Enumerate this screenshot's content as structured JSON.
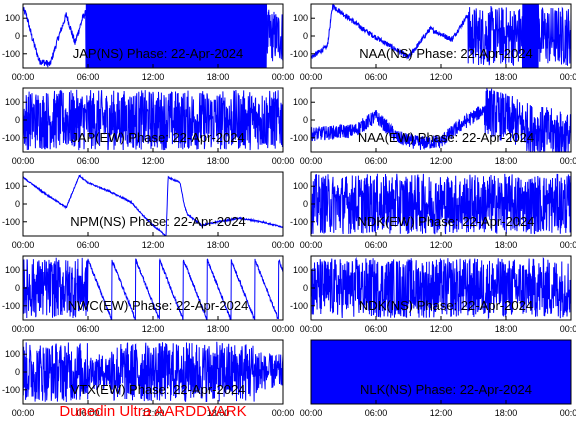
{
  "footer": "Dunedin Ultra AARDDVARK",
  "colors": {
    "trace": "#0000ff",
    "axis": "#000000",
    "footer": "#ff0000",
    "background": "#ffffff"
  },
  "chart_data": [
    {
      "type": "line",
      "title": "JAP(NS) Phase: 22-Apr-2024",
      "xlabel": "",
      "ylabel": "",
      "x_ticks": [
        "00:00",
        "06:00",
        "12:00",
        "18:00",
        "00:00"
      ],
      "y_ticks": [
        -100,
        0,
        100
      ],
      "ylim": [
        -180,
        180
      ],
      "grid": false,
      "series": [
        {
          "pattern": "dense-after",
          "anchors": [
            [
              0,
              150
            ],
            [
              0.3,
              120
            ],
            [
              0.8,
              0
            ],
            [
              1.5,
              -140
            ],
            [
              2.5,
              -160
            ],
            [
              3.2,
              -20
            ],
            [
              4.0,
              120
            ],
            [
              4.8,
              -40
            ],
            [
              5.5,
              100
            ],
            [
              6.0,
              150
            ]
          ],
          "dense_from": 5.8
        }
      ]
    },
    {
      "type": "line",
      "title": "NAA(NS) Phase: 22-Apr-2024",
      "xlabel": "",
      "ylabel": "",
      "x_ticks": [
        "00:00",
        "06:00",
        "12:00",
        "18:00",
        "00:00"
      ],
      "y_ticks": [
        -100,
        0,
        100
      ],
      "ylim": [
        -180,
        180
      ],
      "grid": false,
      "series": [
        {
          "pattern": "wraps-then-dense",
          "anchors": [
            [
              0,
              -120
            ],
            [
              1.5,
              -60
            ],
            [
              2.0,
              170
            ],
            [
              5.0,
              30
            ],
            [
              9.0,
              -120
            ],
            [
              11.0,
              40
            ],
            [
              13.0,
              -20
            ],
            [
              14.5,
              120
            ],
            [
              15.5,
              -80
            ]
          ],
          "dense_from": 14.5
        }
      ]
    },
    {
      "type": "line",
      "title": "JAP(EW) Phase: 22-Apr-2024",
      "xlabel": "",
      "ylabel": "",
      "x_ticks": [
        "00:00",
        "06:00",
        "12:00",
        "18:00",
        "00:00"
      ],
      "y_ticks": [
        -100,
        0,
        100
      ],
      "ylim": [
        -180,
        180
      ],
      "grid": false,
      "series": [
        {
          "pattern": "dense-all",
          "anchors": [
            [
              0,
              0
            ],
            [
              24,
              0
            ]
          ],
          "dense_from": 0
        }
      ]
    },
    {
      "type": "line",
      "title": "NAA(EW) Phase: 22-Apr-2024",
      "xlabel": "",
      "ylabel": "",
      "x_ticks": [
        "00:00",
        "06:00",
        "12:00",
        "18:00",
        "00:00"
      ],
      "y_ticks": [
        -100,
        0,
        100
      ],
      "ylim": [
        -180,
        180
      ],
      "grid": false,
      "series": [
        {
          "pattern": "noisy-band",
          "anchors": [
            [
              0,
              -80
            ],
            [
              4,
              -60
            ],
            [
              6,
              20
            ],
            [
              8,
              -100
            ],
            [
              10,
              -130
            ],
            [
              12,
              -120
            ],
            [
              14,
              -20
            ],
            [
              16,
              60
            ],
            [
              20,
              -40
            ],
            [
              24,
              -100
            ]
          ],
          "dense_from": 16
        }
      ]
    },
    {
      "type": "line",
      "title": "NPM(NS) Phase: 22-Apr-2024",
      "xlabel": "",
      "ylabel": "",
      "x_ticks": [
        "00:00",
        "06:00",
        "12:00",
        "18:00",
        "00:00"
      ],
      "y_ticks": [
        -100,
        0,
        100
      ],
      "ylim": [
        -180,
        180
      ],
      "grid": false,
      "series": [
        {
          "pattern": "drift",
          "anchors": [
            [
              0,
              150
            ],
            [
              2,
              60
            ],
            [
              4,
              -20
            ],
            [
              5.2,
              160
            ],
            [
              6.0,
              120
            ],
            [
              8,
              70
            ],
            [
              10,
              10
            ],
            [
              11,
              -60
            ],
            [
              12,
              -120
            ],
            [
              13.2,
              -180
            ],
            [
              13.4,
              150
            ],
            [
              14.5,
              120
            ],
            [
              14.9,
              -10
            ],
            [
              15.2,
              -60
            ],
            [
              16.5,
              -120
            ],
            [
              18,
              -100
            ],
            [
              20,
              -80
            ],
            [
              22,
              -100
            ],
            [
              24,
              -130
            ]
          ],
          "dense_from": 99
        }
      ]
    },
    {
      "type": "line",
      "title": "NDK(EW) Phase: 22-Apr-2024",
      "xlabel": "",
      "ylabel": "",
      "x_ticks": [
        "00:00",
        "06:00",
        "12:00",
        "18:00",
        "00:00"
      ],
      "y_ticks": [
        -100,
        0,
        100
      ],
      "ylim": [
        -180,
        180
      ],
      "grid": false,
      "series": [
        {
          "pattern": "dense-all",
          "anchors": [
            [
              0,
              0
            ],
            [
              24,
              0
            ]
          ],
          "dense_from": 0
        }
      ]
    },
    {
      "type": "line",
      "title": "NWC(EW) Phase: 22-Apr-2024",
      "xlabel": "",
      "ylabel": "",
      "x_ticks": [
        "00:00",
        "06:00",
        "12:00",
        "18:00",
        "00:00"
      ],
      "y_ticks": [
        -100,
        0,
        100
      ],
      "ylim": [
        -180,
        180
      ],
      "grid": false,
      "series": [
        {
          "pattern": "sawtooth",
          "anchors": [
            [
              0,
              0
            ],
            [
              24,
              0
            ]
          ],
          "dense_from": 6
        }
      ]
    },
    {
      "type": "line",
      "title": "NDK(NS) Phase: 22-Apr-2024",
      "xlabel": "",
      "ylabel": "",
      "x_ticks": [
        "00:00",
        "06:00",
        "12:00",
        "18:00",
        "00:00"
      ],
      "y_ticks": [
        -100,
        0,
        100
      ],
      "ylim": [
        -180,
        180
      ],
      "grid": false,
      "series": [
        {
          "pattern": "dense-all",
          "anchors": [
            [
              0,
              0
            ],
            [
              24,
              0
            ]
          ],
          "dense_from": 0
        }
      ]
    },
    {
      "type": "line",
      "title": "VTX(EW) Phase: 22-Apr-2024",
      "xlabel": "",
      "ylabel": "",
      "x_ticks": [
        "00:00",
        "06:00",
        "12:00",
        "18:00",
        "00:00"
      ],
      "y_ticks": [
        -100,
        0,
        100
      ],
      "ylim": [
        -180,
        180
      ],
      "grid": false,
      "series": [
        {
          "pattern": "dense-mid",
          "anchors": [
            [
              0,
              0
            ],
            [
              24,
              0
            ]
          ],
          "dense_from": 6
        }
      ]
    },
    {
      "type": "line",
      "title": "NLK(NS) Phase: 22-Apr-2024",
      "xlabel": "",
      "ylabel": "",
      "x_ticks": [
        "00:00",
        "06:00",
        "12:00",
        "18:00",
        "00:00"
      ],
      "y_ticks": [],
      "ylim": [
        -180,
        180
      ],
      "grid": false,
      "series": [
        {
          "pattern": "solid",
          "anchors": [
            [
              0,
              0
            ],
            [
              24,
              0
            ]
          ],
          "dense_from": 0
        }
      ]
    }
  ]
}
